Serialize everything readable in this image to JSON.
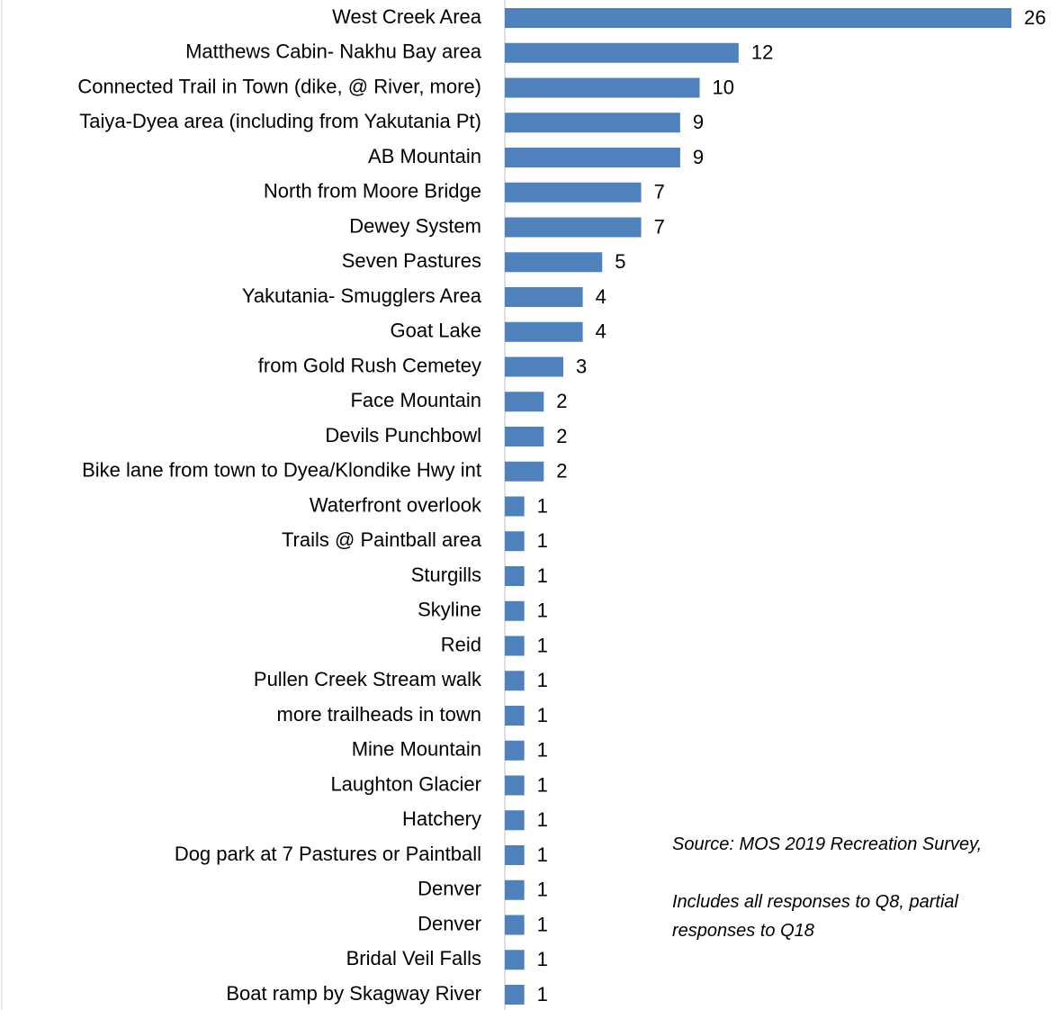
{
  "chart_data": {
    "type": "barh",
    "categories": [
      "West Creek Area",
      "Matthews Cabin- Nakhu Bay area",
      "Connected Trail in Town (dike, @ River, more)",
      "Taiya-Dyea area (including from Yakutania Pt)",
      "AB Mountain",
      "North from Moore Bridge",
      "Dewey System",
      "Seven Pastures",
      "Yakutania- Smugglers Area",
      "Goat Lake",
      "from Gold Rush Cemetey",
      "Face Mountain",
      "Devils Punchbowl",
      "Bike lane from town to Dyea/Klondike Hwy int",
      "Waterfront overlook",
      "Trails @ Paintball area",
      "Sturgills",
      "Skyline",
      "Reid",
      "Pullen Creek Stream walk",
      "more trailheads in town",
      "Mine Mountain",
      "Laughton Glacier",
      "Hatchery",
      "Dog park at 7 Pastures or Paintball",
      "Denver",
      "Denver",
      "Bridal Veil Falls",
      "Boat ramp by Skagway River"
    ],
    "values": [
      26,
      12,
      10,
      9,
      9,
      7,
      7,
      5,
      4,
      4,
      3,
      2,
      2,
      2,
      1,
      1,
      1,
      1,
      1,
      1,
      1,
      1,
      1,
      1,
      1,
      1,
      1,
      1,
      1
    ],
    "color": "#4f81bd",
    "xlim": [
      0,
      26
    ],
    "annotations": [
      "Source: MOS 2019 Recreation Survey,",
      "Includes all responses to Q8, partial responses to Q18"
    ]
  }
}
